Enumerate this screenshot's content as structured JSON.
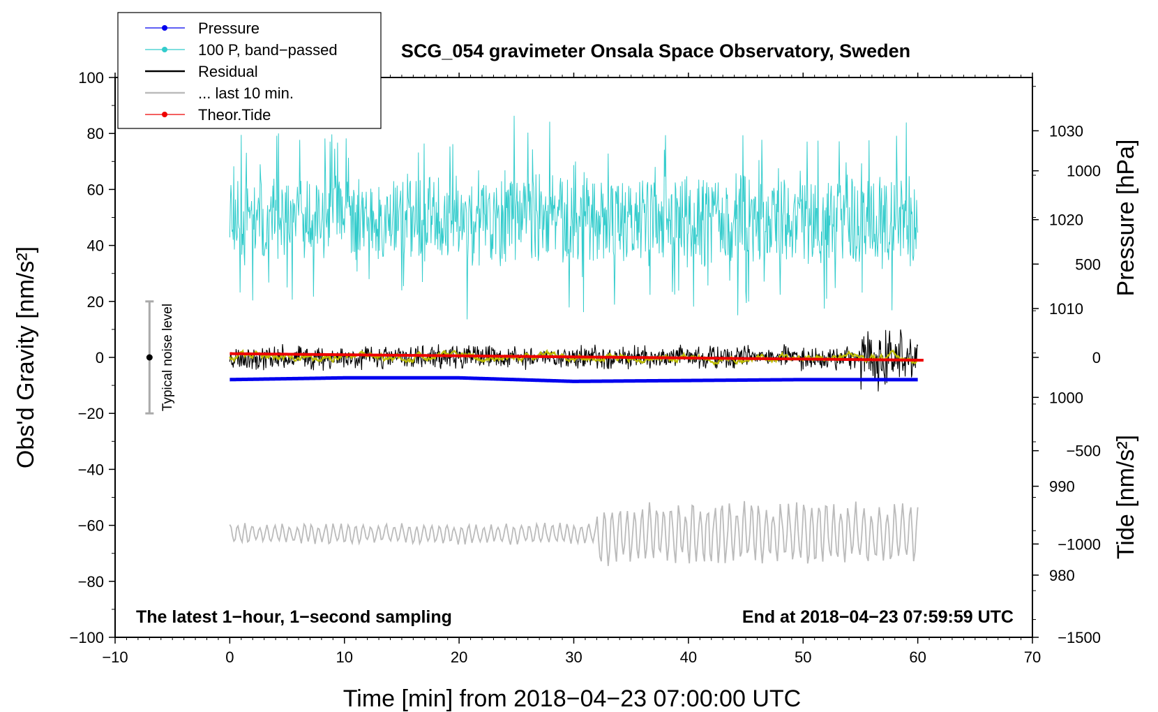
{
  "chart_data": {
    "type": "line",
    "title": "SCG_054 gravimeter Onsala Space Observatory, Sweden",
    "xlabel": "Time [min] from 2018−04−23 07:00:00 UTC",
    "ylabel_left": "Obs'd Gravity [nm/s²]",
    "ylabel_right_top": "Pressure [hPa]",
    "ylabel_right_bottom": "Tide [nm/s²]",
    "xlim": [
      -10,
      70
    ],
    "ylim_left": [
      -100,
      100
    ],
    "ylim_pressure": [
      973,
      1036
    ],
    "ylim_tide": [
      -1500,
      1500
    ],
    "x_ticks": [
      "−10",
      "0",
      "10",
      "20",
      "30",
      "40",
      "50",
      "60",
      "70"
    ],
    "y_ticks_left": [
      "100",
      "80",
      "60",
      "40",
      "20",
      "0",
      "−20",
      "−40",
      "−60",
      "−80",
      "−100"
    ],
    "pressure_ticks": [
      "1030",
      "1020",
      "1010",
      "1000",
      "990",
      "980"
    ],
    "tide_ticks": [
      "1000",
      "500",
      "0",
      "−500",
      "−1000",
      "−1500"
    ],
    "legend": {
      "placement": "top-left",
      "entries": [
        {
          "label": "Pressure",
          "color": "#0000ee",
          "marker": true
        },
        {
          "label": "100 P, band−passed",
          "color": "#33cccc",
          "marker": true
        },
        {
          "label": "Residual",
          "color": "#000000",
          "marker": false
        },
        {
          "label": "... last 10 min.",
          "color": "#bbbbbb",
          "marker": false
        },
        {
          "label": "Theor.Tide",
          "color": "#ee0000",
          "marker": true
        }
      ]
    },
    "annotations": {
      "left": "The latest 1−hour, 1−second sampling",
      "right": "End at 2018−04−23 07:59:59 UTC",
      "noise": "Typical noise level"
    },
    "noise_bar": {
      "x": -7,
      "center": 0,
      "low": -20,
      "high": 20
    },
    "series": [
      {
        "name": "Pressure",
        "axis": "pressure",
        "color": "#0000ee",
        "x": [
          0,
          10,
          20,
          30,
          40,
          50,
          60
        ],
        "values": [
          1002,
          1002.2,
          1002.2,
          1001.8,
          1001.9,
          1002,
          1002
        ]
      },
      {
        "name": "100 P, band−passed",
        "axis": "left",
        "color": "#33cccc",
        "x": [
          0,
          60
        ],
        "center": 49,
        "amplitude_min": 28,
        "amplitude_max": 38,
        "seed": 11
      },
      {
        "name": "Residual",
        "axis": "left",
        "color": "#000000",
        "x": [
          0,
          60
        ],
        "center": 0,
        "amplitude_min": 5,
        "amplitude_max": 13,
        "seed": 23
      },
      {
        "name": "Residual smoothed",
        "axis": "left",
        "color": "#bbbb00",
        "x": [
          0,
          60
        ],
        "center": 0,
        "amplitude_min": 1.6,
        "amplitude_max": 1.6,
        "seed": 37
      },
      {
        "name": "Theor.Tide",
        "axis": "tide",
        "color": "#ee0000",
        "x": [
          0,
          60.5
        ],
        "values": [
          20,
          -15
        ]
      },
      {
        "name": "... last 10 min.",
        "axis": "left",
        "color": "#bbbbbb",
        "x": [
          0,
          60
        ],
        "center": -63,
        "amplitude_min": 4,
        "amplitude_max": 12,
        "seed": 51
      }
    ]
  }
}
